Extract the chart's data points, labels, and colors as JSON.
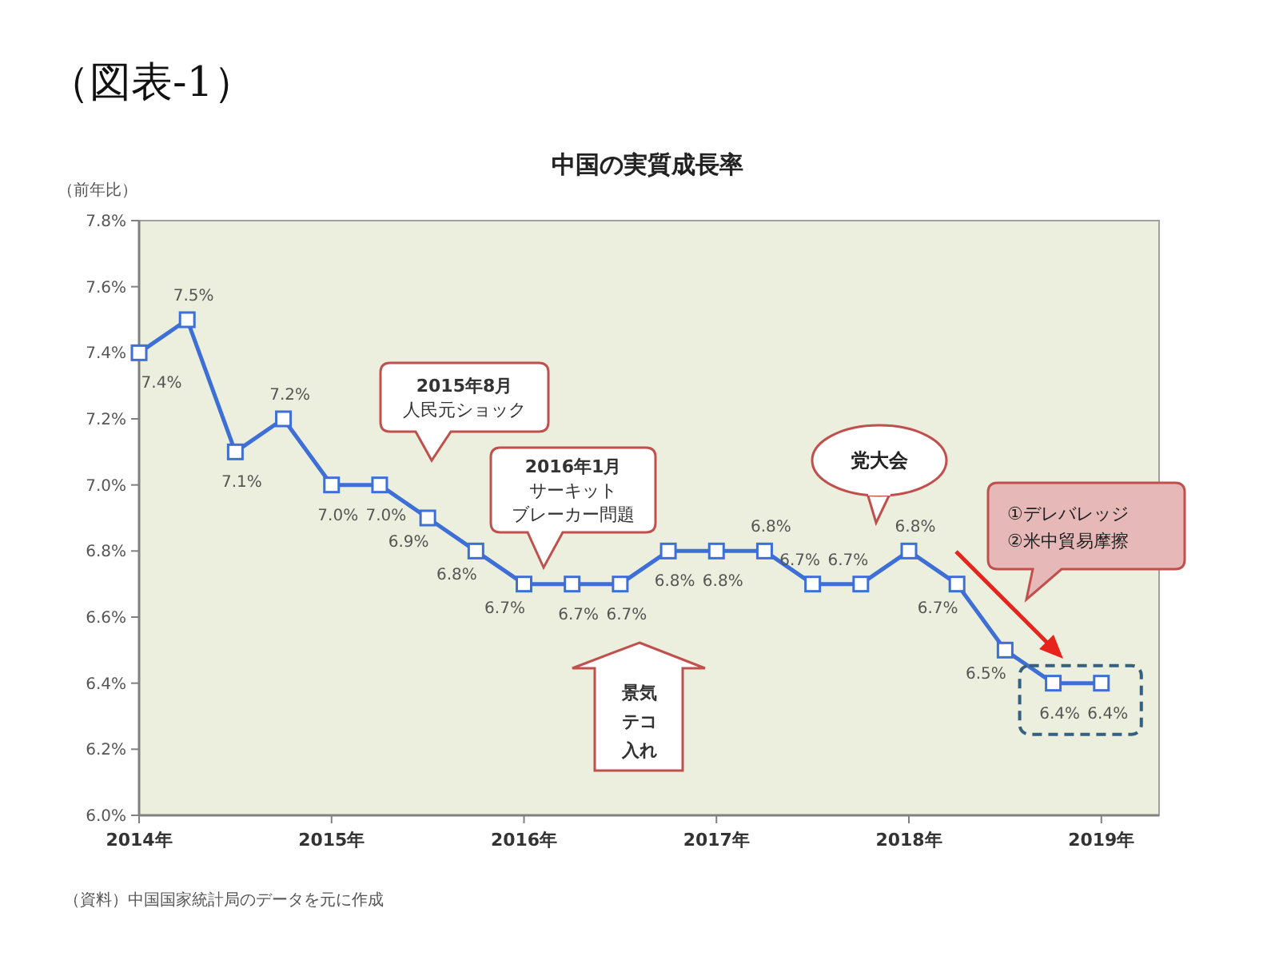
{
  "chart_data": {
    "type": "line",
    "title": "中国の実質成長率",
    "ylabel": "（前年比）",
    "x": [
      2014,
      2014.25,
      2014.5,
      2014.75,
      2015,
      2015.25,
      2015.5,
      2015.75,
      2016,
      2016.25,
      2016.5,
      2016.75,
      2017,
      2017.25,
      2017.5,
      2017.75,
      2018,
      2018.25,
      2018.5,
      2018.75,
      2019
    ],
    "series": [
      {
        "color": "#3d6fd6",
        "values": [
          7.4,
          7.5,
          7.1,
          7.2,
          7.0,
          7.0,
          6.9,
          6.8,
          6.7,
          6.7,
          6.7,
          6.8,
          6.8,
          6.8,
          6.7,
          6.7,
          6.8,
          6.7,
          6.5,
          6.4,
          6.4
        ],
        "value_labels": [
          "7.4%",
          "7.5%",
          "7.1%",
          "7.2%",
          "7.0%",
          "7.0%",
          "6.9%",
          "6.8%",
          "6.7%",
          "6.7%",
          "6.7%",
          "6.8%",
          "6.8%",
          "6.8%",
          "6.7%",
          "6.7%",
          "6.8%",
          "6.7%",
          "6.5%",
          "6.4%",
          "6.4%"
        ]
      }
    ],
    "xlim": [
      2014,
      2019.3
    ],
    "xticks": [
      {
        "value": 2014,
        "label": "2014年"
      },
      {
        "value": 2015,
        "label": "2015年"
      },
      {
        "value": 2016,
        "label": "2016年"
      },
      {
        "value": 2017,
        "label": "2017年"
      },
      {
        "value": 2018,
        "label": "2018年"
      },
      {
        "value": 2019,
        "label": "2019年"
      }
    ],
    "ylim": [
      6.0,
      7.8
    ],
    "yticks": [
      {
        "value": 6.0,
        "label": "6.0%"
      },
      {
        "value": 6.2,
        "label": "6.2%"
      },
      {
        "value": 6.4,
        "label": "6.4%"
      },
      {
        "value": 6.6,
        "label": "6.6%"
      },
      {
        "value": 6.8,
        "label": "6.8%"
      },
      {
        "value": 7.0,
        "label": "7.0%"
      },
      {
        "value": 7.2,
        "label": "7.2%"
      },
      {
        "value": 7.4,
        "label": "7.4%"
      },
      {
        "value": 7.6,
        "label": "7.6%"
      },
      {
        "value": 7.8,
        "label": "7.8%"
      }
    ],
    "marker": "square",
    "line_style": "solid",
    "grid": false,
    "annotations": [
      "（図表-1）",
      "（資料）中国国家統計局のデータを元に作成",
      "2015年8月人民元ショック",
      "2016年1月サーキットブレーカー問題",
      "党大会",
      "景気テコ入れ",
      "①デレバレッジ②米中貿易摩擦"
    ]
  }
}
